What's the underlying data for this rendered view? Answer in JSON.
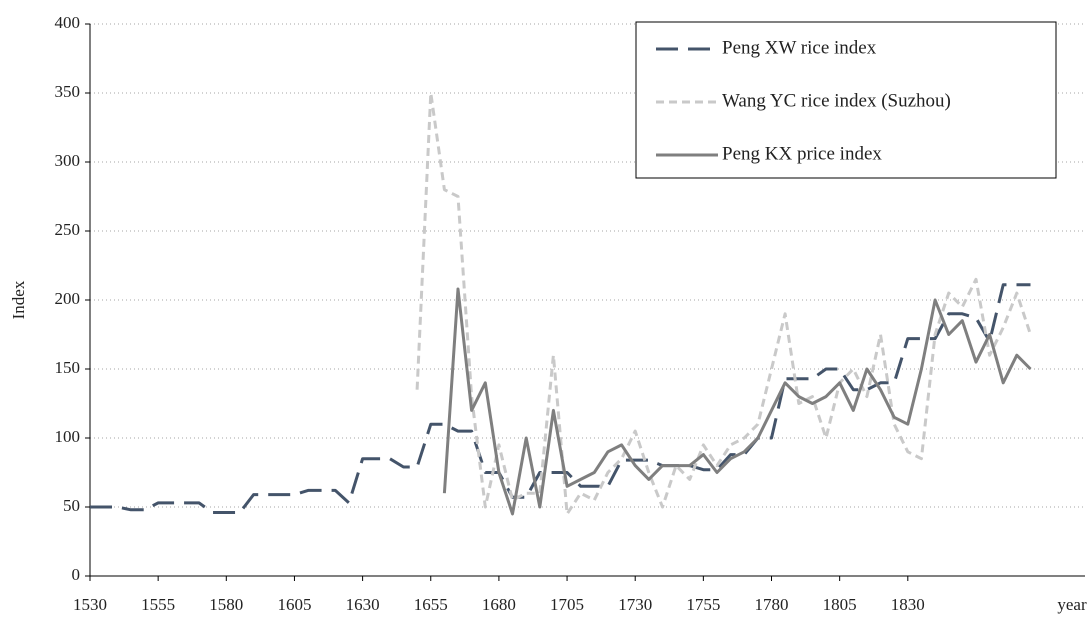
{
  "chart_data": {
    "type": "line",
    "y_label": "Index",
    "x_label": "year",
    "x": [
      1530,
      1535,
      1540,
      1545,
      1550,
      1555,
      1560,
      1565,
      1570,
      1575,
      1580,
      1585,
      1590,
      1595,
      1600,
      1605,
      1610,
      1615,
      1620,
      1625,
      1630,
      1635,
      1640,
      1645,
      1650,
      1655,
      1660,
      1665,
      1670,
      1675,
      1680,
      1685,
      1690,
      1695,
      1700,
      1705,
      1710,
      1715,
      1720,
      1725,
      1730,
      1735,
      1740,
      1745,
      1750,
      1755,
      1760,
      1765,
      1770,
      1775,
      1780,
      1785,
      1790,
      1795,
      1800,
      1805,
      1810,
      1815,
      1820,
      1825,
      1830,
      1835,
      1840,
      1845,
      1850,
      1855,
      1860,
      1865,
      1870,
      1875
    ],
    "series": [
      {
        "name": "Peng XW rice index",
        "color": "#44546a",
        "dash": "22 10",
        "width": 3,
        "values": [
          50,
          50,
          50,
          48,
          48,
          53,
          53,
          53,
          53,
          46,
          46,
          46,
          59,
          59,
          59,
          59,
          62,
          62,
          62,
          53,
          85,
          85,
          85,
          79,
          79,
          110,
          110,
          105,
          105,
          75,
          75,
          57,
          57,
          75,
          75,
          75,
          65,
          65,
          65,
          84,
          84,
          84,
          80,
          80,
          80,
          77,
          77,
          88,
          88,
          100,
          100,
          143,
          143,
          143,
          150,
          150,
          135,
          135,
          140,
          140,
          172,
          172,
          172,
          190,
          190,
          187,
          170,
          211,
          211,
          211
        ]
      },
      {
        "name": "Wang YC rice index (Suzhou)",
        "color": "#c9c9c9",
        "dash": "8 5",
        "width": 3,
        "values": [
          null,
          null,
          null,
          null,
          null,
          null,
          null,
          null,
          null,
          null,
          null,
          null,
          null,
          null,
          null,
          null,
          null,
          null,
          null,
          null,
          null,
          null,
          null,
          null,
          135,
          350,
          280,
          275,
          130,
          50,
          95,
          55,
          60,
          60,
          160,
          45,
          60,
          55,
          75,
          85,
          105,
          75,
          50,
          80,
          70,
          95,
          80,
          95,
          100,
          110,
          150,
          190,
          125,
          130,
          100,
          140,
          150,
          130,
          175,
          110,
          90,
          85,
          175,
          205,
          195,
          215,
          160,
          180,
          205,
          175
        ]
      },
      {
        "name": "Peng KX price index",
        "color": "#7f7f7f",
        "dash": "none",
        "width": 3,
        "values": [
          null,
          null,
          null,
          null,
          null,
          null,
          null,
          null,
          null,
          null,
          null,
          null,
          null,
          null,
          null,
          null,
          null,
          null,
          null,
          null,
          null,
          null,
          null,
          null,
          null,
          null,
          60,
          208,
          120,
          140,
          75,
          45,
          100,
          50,
          120,
          65,
          70,
          75,
          90,
          95,
          80,
          70,
          80,
          80,
          80,
          88,
          75,
          85,
          90,
          100,
          120,
          140,
          130,
          125,
          130,
          140,
          120,
          150,
          135,
          115,
          110,
          150,
          200,
          175,
          185,
          155,
          175,
          140,
          160,
          150
        ]
      }
    ],
    "xlim": [
      1530,
      1895
    ],
    "xticks": [
      1530,
      1555,
      1580,
      1605,
      1630,
      1655,
      1680,
      1705,
      1730,
      1755,
      1780,
      1805,
      1830
    ],
    "ylim": [
      0,
      400
    ],
    "yticks": [
      0,
      50,
      100,
      150,
      200,
      250,
      300,
      350,
      400
    ],
    "grid": true,
    "legend": "top-right"
  }
}
